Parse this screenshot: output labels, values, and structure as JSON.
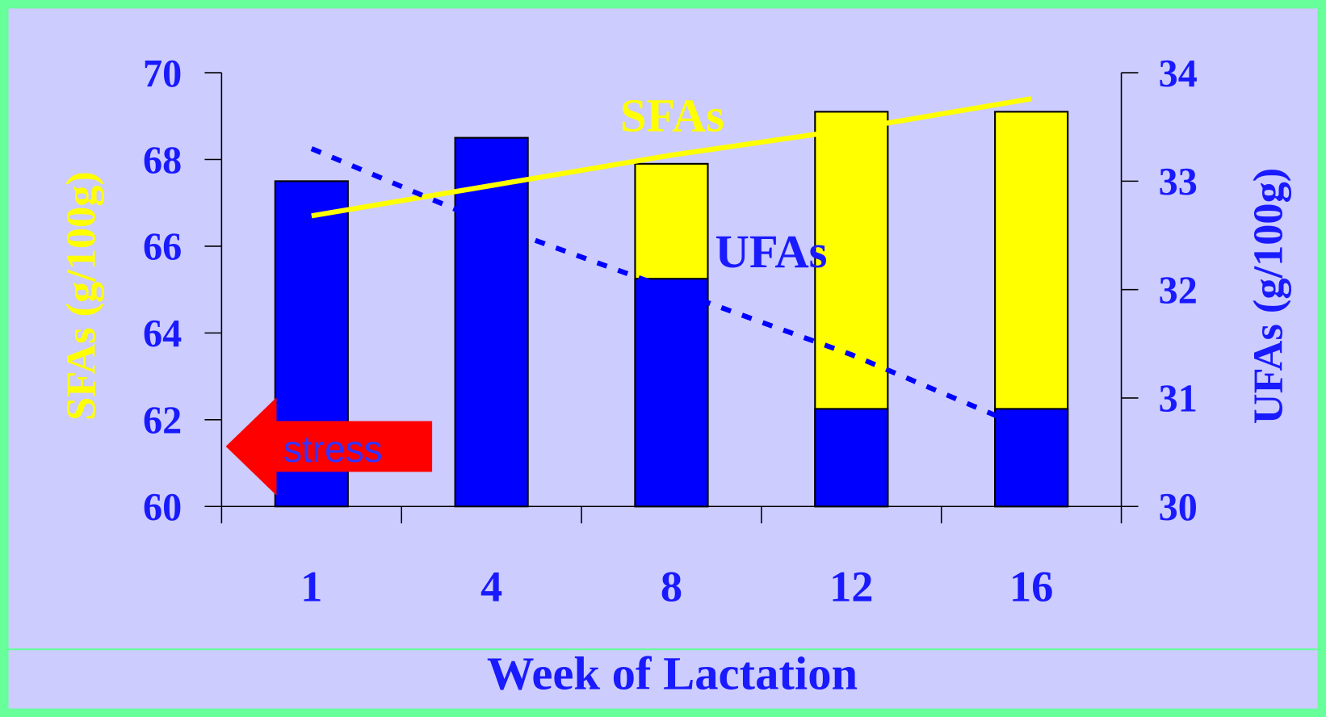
{
  "chart_data": {
    "type": "bar",
    "x_label": "Week of Lactation",
    "y_label": "SFAs (g/100g)",
    "y2_label": "UFAs (g/100g)",
    "annotation": "stress",
    "categories": [
      "1",
      "4",
      "8",
      "12",
      "16"
    ],
    "ylim": [
      60,
      70
    ],
    "yticks": [
      60,
      62,
      64,
      66,
      68,
      70
    ],
    "y2lim": [
      30,
      34
    ],
    "y2ticks": [
      30,
      31,
      32,
      33,
      34
    ],
    "series": [
      {
        "type": "bar",
        "color": "#ffff00",
        "values": [
          null,
          null,
          67.9,
          69.1,
          69.1
        ]
      },
      {
        "type": "bar",
        "axis": "y2",
        "color": "#0000ff",
        "values": [
          33.0,
          33.4,
          32.1,
          30.9,
          30.9
        ]
      },
      {
        "type": "line",
        "name": "SFAs",
        "color": "#ffff00",
        "values": [
          66.7,
          67.4,
          68.1,
          68.7,
          69.4
        ]
      },
      {
        "type": "line",
        "name": "UFAs",
        "axis": "y2",
        "color": "#0000ff",
        "dashed": true,
        "values": [
          33.3,
          32.6,
          32.0,
          31.4,
          30.7
        ]
      }
    ]
  }
}
